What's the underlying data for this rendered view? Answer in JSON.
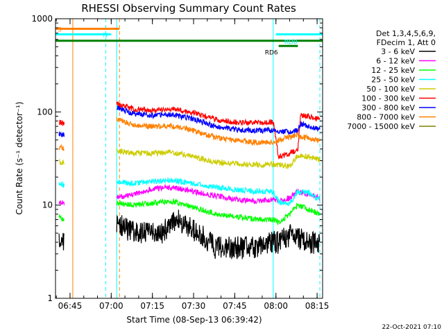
{
  "chart_data": {
    "type": "line",
    "title": "RHESSI Observing Summary Count Rates",
    "xlabel": "Start Time (08-Sep-13 06:39:42)",
    "ylabel": "Count Rate (s⁻¹ detector⁻¹)",
    "yscale": "log",
    "ylim": [
      1,
      1000
    ],
    "xlim": [
      "06:39:42",
      "08:17:00"
    ],
    "x_ticks": [
      "06:45",
      "07:00",
      "07:15",
      "07:30",
      "07:45",
      "08:00",
      "08:15"
    ],
    "y_ticks": [
      1,
      10,
      100,
      1000
    ],
    "y_tick_labels": [
      "1",
      "10",
      "100",
      "1000"
    ],
    "legend": {
      "placement": "right",
      "header": [
        "Det 1,3,4,5,6,9,",
        "FDecim 1, Att 0"
      ]
    },
    "series": [
      {
        "name": "3 - 6 keV",
        "color": "#000000",
        "points": [
          [
            "06:41",
            4.0
          ],
          [
            "06:43",
            3.8
          ],
          [
            "07:02",
            6.5
          ],
          [
            "07:06",
            5.5
          ],
          [
            "07:12",
            5.0
          ],
          [
            "07:18",
            5.0
          ],
          [
            "07:24",
            7.0
          ],
          [
            "07:30",
            5.5
          ],
          [
            "07:38",
            3.5
          ],
          [
            "07:46",
            3.5
          ],
          [
            "07:54",
            3.5
          ],
          [
            "07:59",
            4.0
          ],
          [
            "08:01",
            4.0
          ],
          [
            "08:06",
            5.0
          ],
          [
            "08:11",
            4.0
          ],
          [
            "08:16",
            4.0
          ]
        ]
      },
      {
        "name": "6 - 12 keV",
        "color": "#ff00ff",
        "points": [
          [
            "06:41",
            11.0
          ],
          [
            "06:43",
            10.5
          ],
          [
            "07:02",
            12.0
          ],
          [
            "07:08",
            13.0
          ],
          [
            "07:15",
            15.0
          ],
          [
            "07:22",
            15.5
          ],
          [
            "07:30",
            14.0
          ],
          [
            "07:38",
            12.5
          ],
          [
            "07:46",
            11.5
          ],
          [
            "07:54",
            11.0
          ],
          [
            "07:59",
            11.5
          ],
          [
            "08:01",
            11.0
          ],
          [
            "08:05",
            12.0
          ],
          [
            "08:08",
            14.0
          ],
          [
            "08:12",
            13.0
          ],
          [
            "08:16",
            12.0
          ]
        ]
      },
      {
        "name": "12 - 25 keV",
        "color": "#00ff00",
        "points": [
          [
            "06:41",
            7.5
          ],
          [
            "06:43",
            7.0
          ],
          [
            "07:02",
            10.5
          ],
          [
            "07:08",
            10.0
          ],
          [
            "07:15",
            10.5
          ],
          [
            "07:22",
            11.0
          ],
          [
            "07:30",
            9.5
          ],
          [
            "07:38",
            8.0
          ],
          [
            "07:46",
            7.5
          ],
          [
            "07:54",
            7.0
          ],
          [
            "07:59",
            7.0
          ],
          [
            "08:01",
            6.5
          ],
          [
            "08:05",
            8.0
          ],
          [
            "08:08",
            10.0
          ],
          [
            "08:12",
            9.0
          ],
          [
            "08:16",
            8.0
          ]
        ]
      },
      {
        "name": "25 - 50 keV",
        "color": "#00ffff",
        "points": [
          [
            "06:41",
            17.0
          ],
          [
            "06:43",
            16.5
          ],
          [
            "07:02",
            18.0
          ],
          [
            "07:08",
            17.0
          ],
          [
            "07:15",
            18.0
          ],
          [
            "07:22",
            18.5
          ],
          [
            "07:30",
            17.0
          ],
          [
            "07:38",
            15.5
          ],
          [
            "07:46",
            14.5
          ],
          [
            "07:54",
            14.0
          ],
          [
            "07:59",
            14.0
          ],
          [
            "08:01",
            11.0
          ],
          [
            "08:05",
            10.5
          ],
          [
            "08:08",
            14.0
          ],
          [
            "08:12",
            13.5
          ],
          [
            "08:16",
            11.5
          ]
        ]
      },
      {
        "name": "50 - 100 keV",
        "color": "#cccc00",
        "points": [
          [
            "06:41",
            29.0
          ],
          [
            "06:43",
            28.5
          ],
          [
            "07:02",
            38.0
          ],
          [
            "07:08",
            36.0
          ],
          [
            "07:15",
            36.0
          ],
          [
            "07:22",
            37.0
          ],
          [
            "07:30",
            33.0
          ],
          [
            "07:38",
            29.0
          ],
          [
            "07:46",
            28.0
          ],
          [
            "07:54",
            27.0
          ],
          [
            "07:59",
            27.5
          ],
          [
            "08:01",
            27.0
          ],
          [
            "08:05",
            26.0
          ],
          [
            "08:08",
            34.0
          ],
          [
            "08:12",
            33.0
          ],
          [
            "08:16",
            31.0
          ]
        ]
      },
      {
        "name": "100 - 300 keV",
        "color": "#ff0000",
        "points": [
          [
            "06:41",
            78.0
          ],
          [
            "06:43",
            76.0
          ],
          [
            "07:02",
            122.0
          ],
          [
            "07:08",
            108.0
          ],
          [
            "07:15",
            104.0
          ],
          [
            "07:22",
            108.0
          ],
          [
            "07:30",
            98.0
          ],
          [
            "07:38",
            83.0
          ],
          [
            "07:46",
            77.0
          ],
          [
            "07:54",
            77.0
          ],
          [
            "07:59",
            78.0
          ],
          [
            "08:01",
            33.0
          ],
          [
            "08:05",
            36.0
          ],
          [
            "08:08",
            40.0
          ],
          [
            "08:09",
            93.0
          ],
          [
            "08:12",
            90.0
          ],
          [
            "08:16",
            84.0
          ]
        ]
      },
      {
        "name": "300 - 800 keV",
        "color": "#0000ff",
        "points": [
          [
            "06:41",
            58.0
          ],
          [
            "06:43",
            56.0
          ],
          [
            "07:02",
            112.0
          ],
          [
            "07:08",
            96.0
          ],
          [
            "07:15",
            92.0
          ],
          [
            "07:22",
            94.0
          ],
          [
            "07:30",
            84.0
          ],
          [
            "07:38",
            70.0
          ],
          [
            "07:46",
            64.0
          ],
          [
            "07:54",
            63.0
          ],
          [
            "07:59",
            64.0
          ],
          [
            "08:01",
            62.0
          ],
          [
            "08:05",
            61.0
          ],
          [
            "08:08",
            63.0
          ],
          [
            "08:09",
            75.0
          ],
          [
            "08:12",
            70.0
          ],
          [
            "08:16",
            65.0
          ]
        ]
      },
      {
        "name": "800 - 7000 keV",
        "color": "#ff8000",
        "points": [
          [
            "06:41",
            42.0
          ],
          [
            "06:43",
            41.0
          ],
          [
            "07:02",
            85.0
          ],
          [
            "07:08",
            72.0
          ],
          [
            "07:15",
            70.0
          ],
          [
            "07:22",
            71.0
          ],
          [
            "07:30",
            63.0
          ],
          [
            "07:38",
            53.0
          ],
          [
            "07:46",
            49.0
          ],
          [
            "07:54",
            47.0
          ],
          [
            "07:59",
            48.0
          ],
          [
            "08:01",
            50.0
          ],
          [
            "08:05",
            54.0
          ],
          [
            "08:08",
            56.0
          ],
          [
            "08:12",
            52.0
          ],
          [
            "08:16",
            49.0
          ]
        ]
      },
      {
        "name": "7000 - 15000 keV",
        "color": "#808000",
        "points": []
      }
    ],
    "annotations": {
      "top_bars": [
        {
          "label": "S",
          "color": "#ff8000",
          "start": "06:39:42",
          "end": "07:03",
          "value": 780
        },
        {
          "label": "N",
          "color": "#00ffff",
          "start": "06:39:42",
          "end": "07:00",
          "value": 680
        },
        {
          "label": "",
          "color": "#008000",
          "start": "06:39:42",
          "end": "08:17",
          "value": 580
        },
        {
          "label": "RD0",
          "color": "#00ffff",
          "start": "08:00",
          "end": "08:17",
          "value": 680
        },
        {
          "label": "RD6",
          "color": "#008000",
          "start": "08:01",
          "end": "08:08",
          "value": 510
        }
      ],
      "vertical_lines": [
        {
          "time": "06:46",
          "color": "#ff8000",
          "style": "solid"
        },
        {
          "time": "06:58",
          "color": "#00ffff",
          "style": "dashed"
        },
        {
          "time": "07:03",
          "color": "#ff8000",
          "style": "dashed"
        },
        {
          "time": "07:02",
          "color": "#00ffff",
          "style": "solid"
        },
        {
          "time": "07:59",
          "color": "#00ffff",
          "style": "solid"
        },
        {
          "time": "08:16",
          "color": "#00ffff",
          "style": "dashed"
        }
      ]
    },
    "timestamp": "22-Oct-2021 07:10"
  }
}
